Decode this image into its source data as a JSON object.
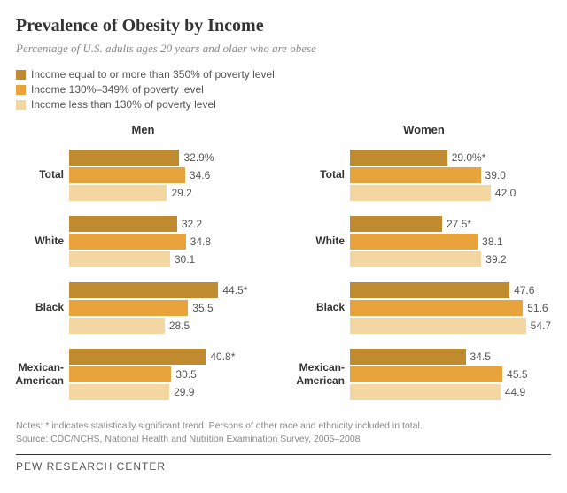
{
  "title": "Prevalence of Obesity by Income",
  "subtitle": "Percentage of U.S. adults ages 20 years and older who are obese",
  "colors": {
    "high": "#c08a2e",
    "mid": "#e8a33d",
    "low": "#f3d6a0",
    "title_text": "#333333",
    "subtitle_text": "#888888",
    "label_text": "#555555",
    "background": "#ffffff"
  },
  "legend": [
    {
      "color": "#c08a2e",
      "label": "Income equal to or more than 350% of poverty level"
    },
    {
      "color": "#e8a33d",
      "label": "Income 130%–349% of poverty level"
    },
    {
      "color": "#f3d6a0",
      "label": "Income less than 130% of poverty level"
    }
  ],
  "max_value": 60,
  "panels": [
    {
      "title": "Men",
      "groups": [
        {
          "category": "Total",
          "bars": [
            {
              "value": 32.9,
              "label": "32.9%",
              "color": "#c08a2e"
            },
            {
              "value": 34.6,
              "label": "34.6",
              "color": "#e8a33d"
            },
            {
              "value": 29.2,
              "label": "29.2",
              "color": "#f3d6a0"
            }
          ]
        },
        {
          "category": "White",
          "bars": [
            {
              "value": 32.2,
              "label": "32.2",
              "color": "#c08a2e"
            },
            {
              "value": 34.8,
              "label": "34.8",
              "color": "#e8a33d"
            },
            {
              "value": 30.1,
              "label": "30.1",
              "color": "#f3d6a0"
            }
          ]
        },
        {
          "category": "Black",
          "bars": [
            {
              "value": 44.5,
              "label": "44.5*",
              "color": "#c08a2e"
            },
            {
              "value": 35.5,
              "label": "35.5",
              "color": "#e8a33d"
            },
            {
              "value": 28.5,
              "label": "28.5",
              "color": "#f3d6a0"
            }
          ]
        },
        {
          "category": "Mexican-American",
          "bars": [
            {
              "value": 40.8,
              "label": "40.8*",
              "color": "#c08a2e"
            },
            {
              "value": 30.5,
              "label": "30.5",
              "color": "#e8a33d"
            },
            {
              "value": 29.9,
              "label": "29.9",
              "color": "#f3d6a0"
            }
          ]
        }
      ]
    },
    {
      "title": "Women",
      "groups": [
        {
          "category": "Total",
          "bars": [
            {
              "value": 29.0,
              "label": "29.0%*",
              "color": "#c08a2e"
            },
            {
              "value": 39.0,
              "label": "39.0",
              "color": "#e8a33d"
            },
            {
              "value": 42.0,
              "label": "42.0",
              "color": "#f3d6a0"
            }
          ]
        },
        {
          "category": "White",
          "bars": [
            {
              "value": 27.5,
              "label": "27.5*",
              "color": "#c08a2e"
            },
            {
              "value": 38.1,
              "label": "38.1",
              "color": "#e8a33d"
            },
            {
              "value": 39.2,
              "label": "39.2",
              "color": "#f3d6a0"
            }
          ]
        },
        {
          "category": "Black",
          "bars": [
            {
              "value": 47.6,
              "label": "47.6",
              "color": "#c08a2e"
            },
            {
              "value": 51.6,
              "label": "51.6",
              "color": "#e8a33d"
            },
            {
              "value": 54.7,
              "label": "54.7",
              "color": "#f3d6a0"
            }
          ]
        },
        {
          "category": "Mexican-American",
          "bars": [
            {
              "value": 34.5,
              "label": "34.5",
              "color": "#c08a2e"
            },
            {
              "value": 45.5,
              "label": "45.5",
              "color": "#e8a33d"
            },
            {
              "value": 44.9,
              "label": "44.9",
              "color": "#f3d6a0"
            }
          ]
        }
      ]
    }
  ],
  "notes_line1": "Notes: * indicates statistically significant trend. Persons of other race and ethnicity included in total.",
  "notes_line2": "Source: CDC/NCHS, National Health and Nutrition Examination Survey, 2005–2008",
  "footer": "PEW RESEARCH CENTER"
}
